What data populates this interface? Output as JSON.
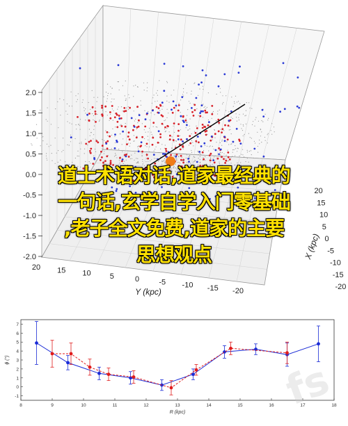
{
  "chart_data": [
    {
      "type": "scatter",
      "title": "",
      "z_axis": {
        "ticks": [
          "2.0",
          "1.5",
          "1.0",
          "0.5",
          "0.0",
          "-0.5",
          "-1.0",
          "-1.5",
          "-2.0"
        ]
      },
      "y_axis": {
        "label": "Y (kpc)",
        "ticks": [
          "20",
          "15",
          "10",
          "5",
          "0",
          "-5",
          "-10",
          "-15",
          "-20"
        ]
      },
      "x_axis": {
        "label": "X (kpc)",
        "ticks": [
          "-20",
          "-15",
          "-10",
          "-5",
          "0",
          "5",
          "10",
          "15",
          "20"
        ]
      },
      "series": [],
      "colors": {
        "red": "#d8222a",
        "blue": "#2b3ad6",
        "marker": "#f07c17",
        "line": "#000000"
      },
      "grid": true
    },
    {
      "type": "line",
      "title": "",
      "xlabel": "R (kpc)",
      "ylabel": "ϕ (°)",
      "xlim": [
        8,
        18
      ],
      "ylim": [
        -1.5,
        7.5
      ],
      "xticks": [
        "8",
        "9",
        "10",
        "11",
        "12",
        "13",
        "14",
        "15",
        "16",
        "17",
        "18"
      ],
      "yticks": [
        "-1",
        "0",
        "1",
        "2",
        "3",
        "4",
        "5",
        "6",
        "7"
      ],
      "series": [
        {
          "color": "#1a2bd6",
          "points": [
            [
              8.5,
              4.9,
              2.4
            ],
            [
              9.5,
              2.7,
              0.8
            ],
            [
              10.5,
              1.5,
              0.7
            ],
            [
              11.5,
              1.0,
              0.7
            ],
            [
              12.5,
              0.2,
              0.6
            ],
            [
              13.5,
              1.4,
              0.6
            ],
            [
              14.5,
              3.9,
              0.7
            ],
            [
              15.5,
              4.2,
              0.6
            ],
            [
              16.5,
              3.6,
              1.3
            ],
            [
              17.5,
              4.8,
              2.0
            ]
          ]
        },
        {
          "color": "#e01b1b",
          "points": [
            [
              9.0,
              3.7,
              1.5
            ],
            [
              9.6,
              3.7,
              1.2
            ],
            [
              10.2,
              2.2,
              0.9
            ],
            [
              10.8,
              1.4,
              0.7
            ],
            [
              11.6,
              1.1,
              0.7
            ],
            [
              12.8,
              -0.1,
              0.8
            ],
            [
              13.6,
              1.9,
              0.6
            ],
            [
              14.7,
              4.3,
              0.7
            ],
            [
              16.5,
              3.8,
              1.2
            ]
          ]
        }
      ]
    }
  ],
  "overlay_text": [
    "道士术语对话,道家最经典的",
    "一句话,玄学自学入门零基础",
    ",老子全文免费,道家的主要",
    "思想观点"
  ]
}
